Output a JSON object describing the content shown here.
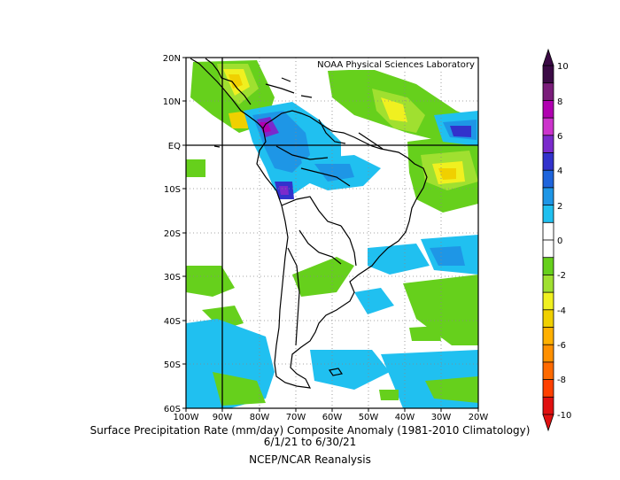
{
  "map": {
    "credit": "NOAA Physical Sciences Laboratory",
    "lon_ticks": [
      "100W",
      "90W",
      "80W",
      "70W",
      "60W",
      "50W",
      "40W",
      "30W",
      "20W"
    ],
    "lat_ticks": [
      "20N",
      "10N",
      "EQ",
      "10S",
      "20S",
      "30S",
      "40S",
      "50S",
      "60S"
    ],
    "lon_range": [
      -100,
      -20
    ],
    "lat_range": [
      -60,
      20
    ]
  },
  "colorbar": {
    "labels": [
      "10",
      "8",
      "6",
      "4",
      "2",
      "0",
      "-2",
      "-4",
      "-6",
      "-8",
      "-10"
    ],
    "colors": [
      "#3b0a45",
      "#7a1d7a",
      "#b000b0",
      "#cc33cc",
      "#7a2acc",
      "#3232cc",
      "#1e64dc",
      "#1e96e6",
      "#20c0f0",
      "#ffffff",
      "#ffffff",
      "#66d01c",
      "#a0e030",
      "#f0f020",
      "#f0d000",
      "#ffb000",
      "#ff9000",
      "#ff6a00",
      "#ff4000",
      "#e01010"
    ]
  },
  "captions": {
    "title": "Surface Precipitation Rate (mm/day) Composite Anomaly (1981-2010 Climatology)",
    "dates": "6/1/21   to 6/30/21",
    "source": "NCEP/NCAR Reanalysis"
  }
}
